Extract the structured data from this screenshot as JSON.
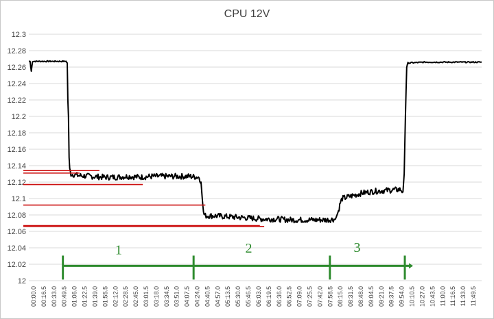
{
  "chart_data": {
    "type": "line",
    "title": "CPU 12V",
    "xlabel": "",
    "ylabel": "",
    "ylim": [
      12,
      12.3
    ],
    "yticks": [
      "12.3",
      "12.28",
      "12.26",
      "12.24",
      "12.22",
      "12.2",
      "12.18",
      "12.16",
      "12.14",
      "12.12",
      "12.1",
      "12.08",
      "12.06",
      "12.04",
      "12.02",
      "12"
    ],
    "x_tick_labels": [
      "00:00.0",
      "00:16.5",
      "00:33.0",
      "00:49.5",
      "01:06.0",
      "01:22.5",
      "01:39.0",
      "01:55.5",
      "02:12.0",
      "02:28.5",
      "02:45.0",
      "03:01.5",
      "03:18.0",
      "03:34.5",
      "03:51.0",
      "04:07.5",
      "04:24.0",
      "04:40.5",
      "04:57.0",
      "05:13.5",
      "05:30.0",
      "05:46.5",
      "06:03.0",
      "06:19.5",
      "06:36.0",
      "06:52.5",
      "07:09.0",
      "07:25.5",
      "07:42.0",
      "07:58.5",
      "08:15.0",
      "08:31.5",
      "08:48.0",
      "09:04.5",
      "09:21.0",
      "09:37.5",
      "09:54.0",
      "10:10.5",
      "10:27.0",
      "10:43.5",
      "11:00.0",
      "11:16.5",
      "11:33.0",
      "11:49.5"
    ],
    "x_range_seconds": [
      0,
      731
    ],
    "grid": "horizontal",
    "legend": "none",
    "series": [
      {
        "color": "#000000",
        "points": [
          [
            0,
            12.267
          ],
          [
            2,
            12.267
          ],
          [
            4,
            12.255
          ],
          [
            6,
            12.267
          ],
          [
            20,
            12.267
          ],
          [
            40,
            12.267
          ],
          [
            60,
            12.267
          ],
          [
            62,
            12.265
          ],
          [
            63,
            12.22
          ],
          [
            64,
            12.2
          ],
          [
            65,
            12.15
          ],
          [
            66,
            12.135
          ],
          [
            68,
            12.13
          ],
          [
            80,
            12.128
          ],
          [
            100,
            12.127
          ],
          [
            120,
            12.126
          ],
          [
            140,
            12.126
          ],
          [
            160,
            12.127
          ],
          [
            180,
            12.126
          ],
          [
            200,
            12.127
          ],
          [
            220,
            12.127
          ],
          [
            240,
            12.127
          ],
          [
            260,
            12.127
          ],
          [
            275,
            12.126
          ],
          [
            278,
            12.12
          ],
          [
            280,
            12.1
          ],
          [
            282,
            12.082
          ],
          [
            285,
            12.079
          ],
          [
            300,
            12.079
          ],
          [
            320,
            12.078
          ],
          [
            340,
            12.077
          ],
          [
            360,
            12.076
          ],
          [
            380,
            12.075
          ],
          [
            400,
            12.075
          ],
          [
            420,
            12.074
          ],
          [
            440,
            12.074
          ],
          [
            460,
            12.074
          ],
          [
            480,
            12.074
          ],
          [
            495,
            12.075
          ],
          [
            500,
            12.085
          ],
          [
            503,
            12.095
          ],
          [
            506,
            12.1
          ],
          [
            520,
            12.103
          ],
          [
            540,
            12.107
          ],
          [
            560,
            12.109
          ],
          [
            580,
            12.11
          ],
          [
            600,
            12.111
          ],
          [
            604,
            12.108
          ],
          [
            606,
            12.13
          ],
          [
            608,
            12.2
          ],
          [
            610,
            12.26
          ],
          [
            612,
            12.265
          ],
          [
            640,
            12.266
          ],
          [
            680,
            12.266
          ],
          [
            720,
            12.266
          ],
          [
            731,
            12.266
          ]
        ]
      }
    ],
    "annotations": {
      "red_markers": [
        {
          "y": 12.134,
          "x": [
            0,
            114
          ]
        },
        {
          "y": 12.131,
          "x": [
            0,
            82
          ]
        },
        {
          "y": 12.117,
          "x": [
            0,
            184
          ]
        },
        {
          "y": 12.092,
          "x": [
            0,
            285
          ]
        },
        {
          "y": 12.067,
          "x": [
            0,
            373
          ]
        },
        {
          "y": 12.066,
          "x": [
            0,
            380
          ]
        }
      ],
      "red_color": "#cc1111",
      "green_color": "#2e8b2e",
      "phase_line_y": 12.018,
      "phase_ticks_x": [
        55,
        266,
        486,
        607
      ],
      "phase_labels": [
        {
          "text": "1",
          "x": 145,
          "y": 12.032
        },
        {
          "text": "2",
          "x": 355,
          "y": 12.034
        },
        {
          "text": "3",
          "x": 530,
          "y": 12.035
        }
      ]
    }
  }
}
